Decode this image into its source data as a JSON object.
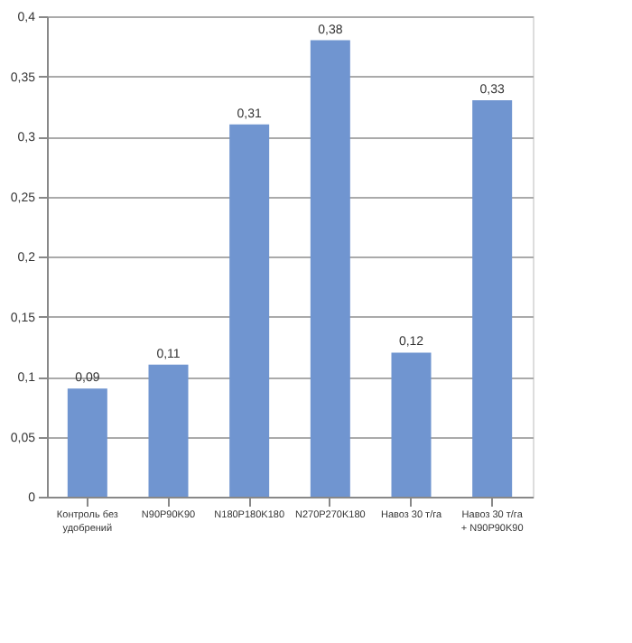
{
  "chart_data": {
    "type": "bar",
    "categories": [
      "Контроль без удобрений",
      "N90P90K90",
      "N180P180K180",
      "N270P270K180",
      "Навоз 30 т/га",
      "Навоз 30 т/га + N90P90K90"
    ],
    "values": [
      0.09,
      0.11,
      0.31,
      0.38,
      0.12,
      0.33
    ],
    "value_labels": [
      "0,09",
      "0,11",
      "0,31",
      "0,38",
      "0,12",
      "0,33"
    ],
    "color": "#7095d0",
    "ylim": [
      0,
      0.4
    ],
    "yticks": [
      0,
      {
        "value": 0.05,
        "label": "0,05"
      },
      {
        "value": 0.1,
        "label": "0,1"
      },
      {
        "value": 0.15,
        "label": "0,15"
      },
      {
        "value": 0.2,
        "label": "0,2"
      },
      {
        "value": 0.25,
        "label": "0,25"
      },
      {
        "value": 0.3,
        "label": "0,3"
      },
      {
        "value": 0.35,
        "label": "0,35"
      },
      {
        "value": 0.4,
        "label": "0,4"
      }
    ],
    "grid": "y"
  }
}
